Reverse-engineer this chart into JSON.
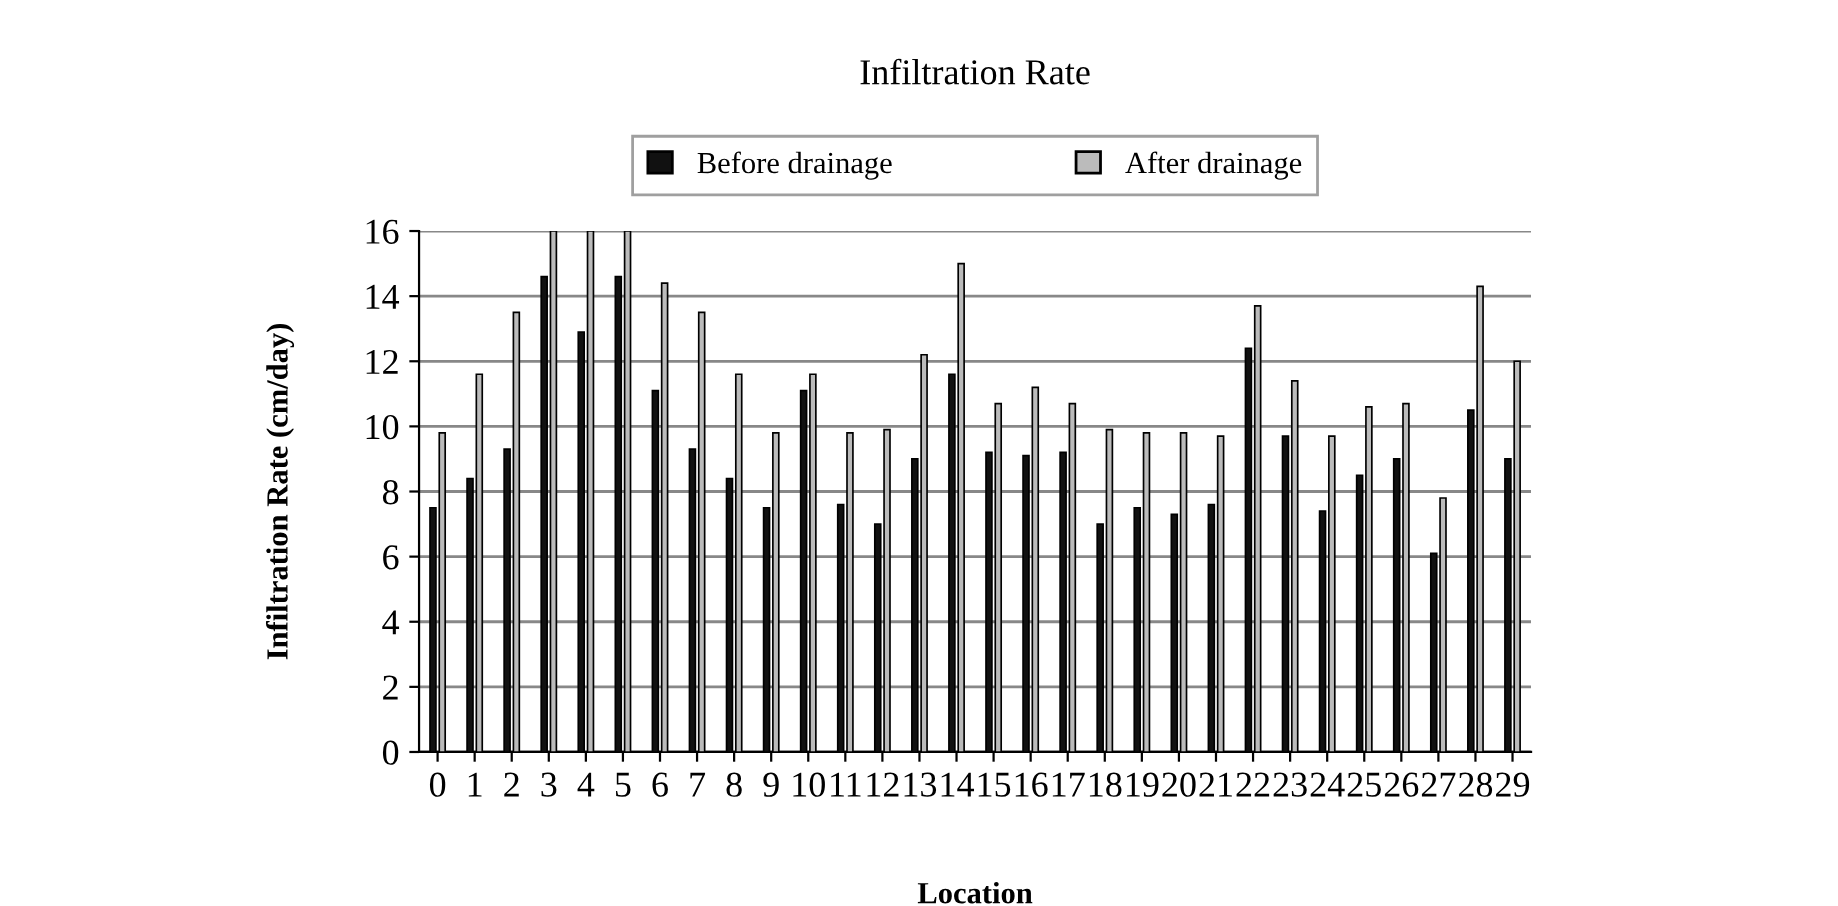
{
  "chart_data": {
    "type": "bar",
    "title": "Infiltration Rate",
    "xlabel": "Location",
    "ylabel": "Infiltration Rate (cm/day)",
    "categories": [
      "0",
      "1",
      "2",
      "3",
      "4",
      "5",
      "6",
      "7",
      "8",
      "9",
      "10",
      "11",
      "12",
      "13",
      "14",
      "15",
      "16",
      "17",
      "18",
      "19",
      "20",
      "21",
      "22",
      "23",
      "24",
      "25",
      "26",
      "27",
      "28",
      "29"
    ],
    "series": [
      {
        "name": "Before drainage",
        "color": "#111111",
        "values": [
          7.5,
          8.4,
          9.3,
          14.6,
          12.9,
          14.6,
          11.1,
          9.3,
          8.4,
          7.5,
          11.1,
          7.6,
          7.0,
          9.0,
          11.6,
          9.2,
          9.1,
          9.2,
          7.0,
          7.5,
          7.3,
          7.6,
          12.4,
          9.7,
          7.4,
          8.5,
          9.0,
          6.1,
          10.5,
          9.0
        ]
      },
      {
        "name": "After drainage",
        "color": "#bbbbbb",
        "values": [
          9.8,
          11.6,
          13.5,
          16,
          16,
          16,
          14.4,
          13.5,
          11.6,
          9.8,
          11.6,
          9.8,
          9.9,
          12.2,
          15.0,
          10.7,
          11.2,
          10.7,
          9.9,
          9.8,
          9.8,
          9.7,
          13.7,
          11.4,
          9.7,
          10.6,
          10.7,
          7.8,
          14.3,
          12.0
        ]
      }
    ],
    "ylim": [
      0,
      16
    ],
    "yticks": [
      0,
      2,
      4,
      6,
      8,
      10,
      12,
      14,
      16
    ],
    "grid": "y",
    "legend": "top"
  }
}
